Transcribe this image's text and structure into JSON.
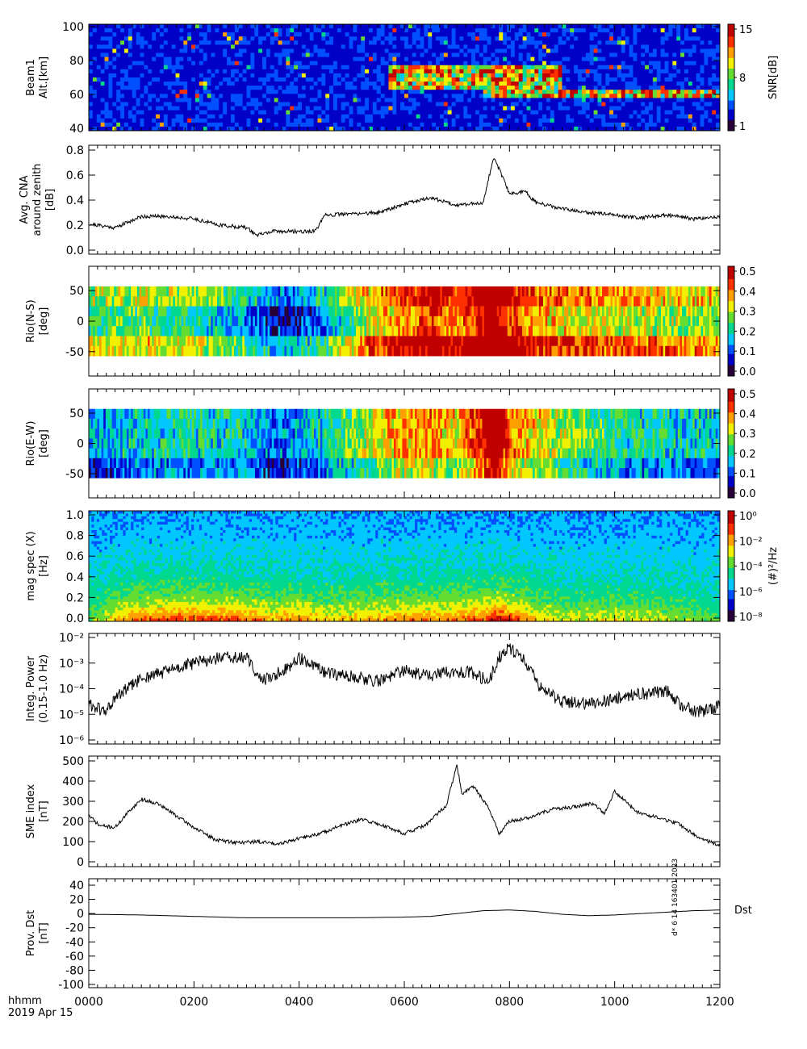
{
  "footer": {
    "time_format": "hhmm",
    "date": "2019 Apr 15",
    "timestamp_vertical": "d* 6 14 163401 2023"
  },
  "x_axis": {
    "ticks": [
      "0000",
      "0200",
      "0400",
      "0600",
      "0800",
      "1000",
      "1200"
    ],
    "range_hours": [
      0,
      12
    ]
  },
  "colors": {
    "spectrogram_scale": [
      "#280038",
      "#0000c8",
      "#0050ff",
      "#00c8ff",
      "#00d890",
      "#64dc32",
      "#f0f000",
      "#ffa000",
      "#ff3000",
      "#c00000"
    ]
  },
  "chart_data": [
    {
      "id": "beam1",
      "type": "heatmap",
      "ylabel_lines": [
        "Beam1",
        "Alt.[km]"
      ],
      "yticks": [
        "100",
        "80",
        "60",
        "40"
      ],
      "ylim": [
        40,
        100
      ],
      "colorbar": {
        "label": "SNR[dB]",
        "ticks": [
          "15",
          "8",
          "1"
        ],
        "range": [
          1,
          15
        ]
      },
      "features": [
        {
          "x_range": [
            5.7,
            9.0
          ],
          "alt_range": [
            62,
            78
          ],
          "level": "high"
        },
        {
          "x_range": [
            7.5,
            12.0
          ],
          "alt_range": [
            58,
            62
          ],
          "level": "high"
        },
        {
          "x_range": [
            0,
            12
          ],
          "alt_range": [
            40,
            100
          ],
          "level": "background-low"
        }
      ]
    },
    {
      "id": "cna",
      "type": "line",
      "ylabel_lines": [
        "Avg. CNA",
        "around zenith",
        "[dB]"
      ],
      "yticks": [
        "0.8",
        "0.6",
        "0.4",
        "0.2",
        "0.0"
      ],
      "ylim": [
        0,
        0.85
      ],
      "x": [
        0,
        0.5,
        1.0,
        1.5,
        2.0,
        2.5,
        3.0,
        3.2,
        3.5,
        4.0,
        4.3,
        4.5,
        5.0,
        5.5,
        6.0,
        6.5,
        7.0,
        7.5,
        7.7,
        8.0,
        8.3,
        8.5,
        9.0,
        9.5,
        10.0,
        10.5,
        11.0,
        11.5,
        12.0
      ],
      "y": [
        0.21,
        0.18,
        0.27,
        0.27,
        0.25,
        0.2,
        0.18,
        0.12,
        0.15,
        0.15,
        0.15,
        0.28,
        0.29,
        0.3,
        0.37,
        0.42,
        0.36,
        0.38,
        0.75,
        0.45,
        0.47,
        0.38,
        0.33,
        0.3,
        0.28,
        0.26,
        0.28,
        0.25,
        0.27
      ]
    },
    {
      "id": "rio-ns",
      "type": "heatmap",
      "ylabel_lines": [
        "Rio(N-S)",
        "[deg]"
      ],
      "yticks": [
        "50",
        "0",
        "-50"
      ],
      "ylim": [
        -90,
        90
      ],
      "colorbar": {
        "ticks": [
          "0.5",
          "0.4",
          "0.3",
          "0.2",
          "0.1",
          "0.0"
        ],
        "range": [
          0,
          0.55
        ]
      },
      "value_profile": {
        "x": [
          0,
          1.0,
          2.0,
          3.0,
          3.5,
          4.0,
          4.5,
          5.0,
          5.5,
          6.0,
          6.5,
          7.0,
          7.5,
          7.7,
          8.0,
          8.5,
          9.0,
          10.0,
          11.0,
          12.0
        ],
        "v": [
          0.28,
          0.3,
          0.27,
          0.2,
          0.12,
          0.13,
          0.2,
          0.3,
          0.4,
          0.45,
          0.5,
          0.42,
          0.55,
          0.6,
          0.5,
          0.42,
          0.4,
          0.38,
          0.35,
          0.33
        ]
      }
    },
    {
      "id": "rio-ew",
      "type": "heatmap",
      "ylabel_lines": [
        "Rio(E-W)",
        "[deg]"
      ],
      "yticks": [
        "50",
        "0",
        "-50"
      ],
      "ylim": [
        -90,
        90
      ],
      "colorbar": {
        "ticks": [
          "0.5",
          "0.4",
          "0.3",
          "0.2",
          "0.1",
          "0.0"
        ],
        "range": [
          0,
          0.55
        ]
      },
      "value_profile": {
        "x": [
          0,
          1.0,
          2.0,
          3.0,
          3.5,
          4.0,
          4.5,
          5.0,
          5.5,
          6.0,
          6.5,
          7.0,
          7.5,
          7.7,
          8.0,
          8.5,
          9.0,
          10.0,
          11.0,
          12.0
        ],
        "v": [
          0.14,
          0.2,
          0.22,
          0.2,
          0.12,
          0.15,
          0.22,
          0.27,
          0.35,
          0.38,
          0.4,
          0.35,
          0.5,
          0.6,
          0.42,
          0.35,
          0.3,
          0.23,
          0.2,
          0.2
        ]
      }
    },
    {
      "id": "mag-spec",
      "type": "heatmap",
      "ylabel_lines": [
        "mag spec (X)",
        "[Hz]"
      ],
      "yticks": [
        "1.0",
        "0.8",
        "0.6",
        "0.4",
        "0.2",
        "0.0"
      ],
      "ylim": [
        0,
        1.05
      ],
      "colorbar": {
        "label": "(#)²/Hz",
        "ticks": [
          "10⁰",
          "10⁻²",
          "10⁻⁴",
          "10⁻⁶",
          "10⁻⁸"
        ],
        "range_log": [
          -9,
          0
        ]
      },
      "power_profile": {
        "x": [
          0,
          0.5,
          1.0,
          1.5,
          2.0,
          2.5,
          3.0,
          3.5,
          4.0,
          4.5,
          5.0,
          5.5,
          6.0,
          6.5,
          7.0,
          7.5,
          7.8,
          8.0,
          8.5,
          9.0,
          9.5,
          10.0,
          10.5,
          11.0,
          12.0
        ],
        "level": [
          0.15,
          0.4,
          0.55,
          0.6,
          0.6,
          0.58,
          0.55,
          0.45,
          0.5,
          0.4,
          0.42,
          0.45,
          0.5,
          0.5,
          0.55,
          0.6,
          0.75,
          0.65,
          0.4,
          0.3,
          0.3,
          0.35,
          0.3,
          0.25,
          0.15
        ]
      }
    },
    {
      "id": "integ-power",
      "type": "line",
      "ylabel_lines": [
        "Integ. Power",
        "(0.15-1.0 Hz)"
      ],
      "yticks": [
        "10⁻²",
        "10⁻³",
        "10⁻⁴",
        "10⁻⁵",
        "10⁻⁶"
      ],
      "ylog": true,
      "ylim_exp": [
        -6,
        -2
      ],
      "x": [
        0,
        0.3,
        0.6,
        1.0,
        1.5,
        2.0,
        2.5,
        3.0,
        3.3,
        3.7,
        4.0,
        4.5,
        5.0,
        5.5,
        6.0,
        6.5,
        7.0,
        7.3,
        7.6,
        7.8,
        8.0,
        8.3,
        8.6,
        9.0,
        9.5,
        10.0,
        10.5,
        11.0,
        11.3,
        11.6,
        12.0
      ],
      "y_exp": [
        -4.6,
        -4.9,
        -4.2,
        -3.6,
        -3.3,
        -3.0,
        -2.8,
        -2.8,
        -3.7,
        -3.3,
        -2.8,
        -3.4,
        -3.5,
        -3.7,
        -3.3,
        -3.5,
        -3.3,
        -3.4,
        -3.7,
        -2.8,
        -2.4,
        -2.9,
        -4.0,
        -4.5,
        -4.6,
        -4.4,
        -4.2,
        -4.1,
        -4.7,
        -4.9,
        -4.7
      ]
    },
    {
      "id": "sme",
      "type": "line",
      "ylabel_lines": [
        "SME index",
        "[nT]"
      ],
      "yticks": [
        "500",
        "400",
        "300",
        "200",
        "100",
        "0"
      ],
      "ylim": [
        0,
        520
      ],
      "x": [
        0,
        0.2,
        0.5,
        0.8,
        1.0,
        1.3,
        1.6,
        2.0,
        2.4,
        2.8,
        3.2,
        3.6,
        4.0,
        4.4,
        4.8,
        5.2,
        5.6,
        6.0,
        6.4,
        6.8,
        7.0,
        7.1,
        7.3,
        7.6,
        7.8,
        8.0,
        8.4,
        8.8,
        9.2,
        9.6,
        9.8,
        10.0,
        10.4,
        10.8,
        11.2,
        11.6,
        12.0
      ],
      "y": [
        230,
        180,
        170,
        260,
        310,
        290,
        240,
        170,
        110,
        95,
        100,
        90,
        115,
        140,
        180,
        210,
        180,
        140,
        180,
        280,
        480,
        330,
        380,
        270,
        140,
        200,
        220,
        260,
        270,
        290,
        240,
        350,
        250,
        220,
        190,
        120,
        80
      ]
    },
    {
      "id": "dst",
      "type": "line",
      "ylabel_lines": [
        "Prov. Dst",
        "[nT]"
      ],
      "yticks": [
        "40",
        "20",
        "0",
        "-20",
        "-40",
        "-60",
        "-80",
        "-100"
      ],
      "ylim": [
        -110,
        50
      ],
      "series_label": "Dst",
      "x": [
        0,
        1,
        2,
        3,
        4,
        5,
        6,
        6.5,
        7,
        7.5,
        8,
        8.5,
        9,
        9.5,
        10,
        10.5,
        11,
        11.5,
        12
      ],
      "y": [
        -1,
        -2,
        -4,
        -6,
        -6,
        -6,
        -5,
        -4,
        0,
        4,
        5,
        3,
        -1,
        -3,
        -2,
        0,
        2,
        4,
        5
      ]
    }
  ]
}
